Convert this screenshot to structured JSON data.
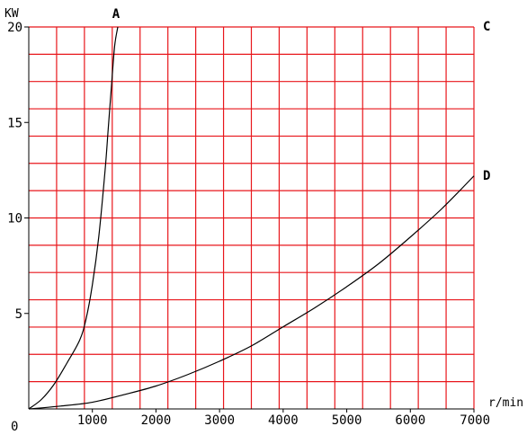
{
  "chart_data": {
    "type": "line",
    "title": "",
    "xlabel": "r/min",
    "ylabel": "KW",
    "origin_label": "0",
    "footnote": "",
    "xlim": [
      0,
      7000
    ],
    "ylim": [
      0,
      20
    ],
    "x_ticks": [
      {
        "value": 1000,
        "label": "1000"
      },
      {
        "value": 2000,
        "label": "2000"
      },
      {
        "value": 3000,
        "label": "3000"
      },
      {
        "value": 4000,
        "label": "4000"
      },
      {
        "value": 5000,
        "label": "5000"
      },
      {
        "value": 6000,
        "label": "6000"
      },
      {
        "value": 7000,
        "label": "7000"
      }
    ],
    "y_ticks": [
      {
        "value": 5,
        "label": "5"
      },
      {
        "value": 10,
        "label": "10"
      },
      {
        "value": 15,
        "label": "15"
      },
      {
        "value": 20,
        "label": "20"
      }
    ],
    "x_grid_step": 437.5,
    "y_grid_step": 1.4286,
    "grid": true,
    "grid_color": "#e8161b",
    "curve_color": "#000000",
    "series": [
      {
        "name": "A",
        "x": [
          0,
          200,
          400,
          600,
          800,
          900,
          1000,
          1100,
          1200,
          1250,
          1300,
          1350,
          1400
        ],
        "y": [
          0,
          0.5,
          1.3,
          2.4,
          3.6,
          4.7,
          6.5,
          9.0,
          12.5,
          14.7,
          16.9,
          19.0,
          20.0
        ]
      },
      {
        "name": "C",
        "x": [
          7000
        ],
        "y": [
          20
        ]
      },
      {
        "name": "D",
        "x": [
          0,
          500,
          1000,
          1500,
          2000,
          2500,
          3000,
          3500,
          4000,
          4500,
          5000,
          5500,
          6000,
          6500,
          7000
        ],
        "y": [
          0,
          0.15,
          0.35,
          0.75,
          1.2,
          1.8,
          2.5,
          3.3,
          4.3,
          5.3,
          6.4,
          7.6,
          9.0,
          10.5,
          12.2
        ]
      }
    ]
  }
}
